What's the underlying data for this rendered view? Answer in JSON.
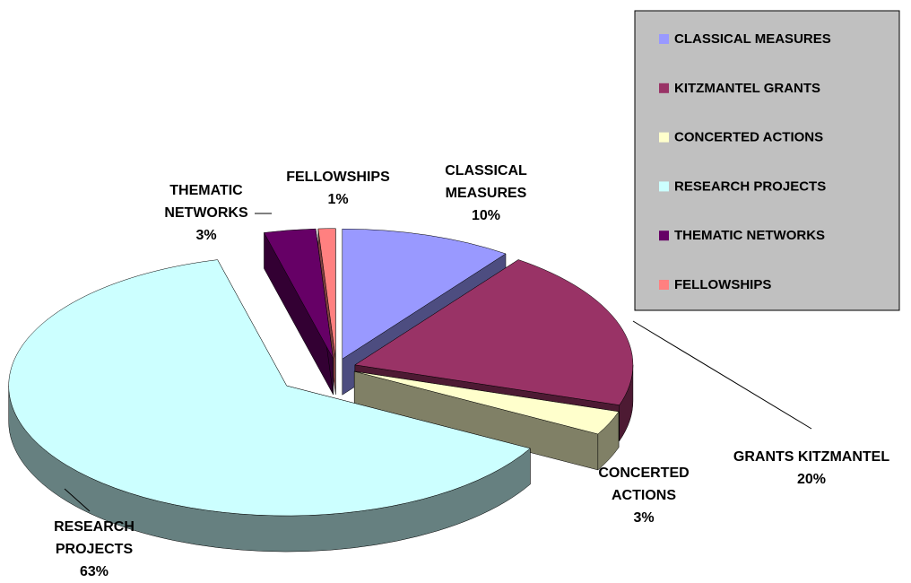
{
  "chart_data": {
    "type": "pie3d",
    "categories": [
      "CLASSICAL MEASURES",
      "KITZMANTEL GRANTS",
      "CONCERTED ACTIONS",
      "RESEARCH PROJECTS",
      "THEMATIC NETWORKS",
      "FELLOWSHIPS"
    ],
    "labels": [
      "CLASSICAL MEASURES",
      "GRANTS KITZMANTEL",
      "CONCERTED ACTIONS",
      "RESEARCH PROJECTS",
      "THEMATIC NETWORKS",
      "FELLOWSHIPS"
    ],
    "values": [
      10,
      20,
      3,
      63,
      3,
      1
    ],
    "value_labels": [
      "10%",
      "20%",
      "3%",
      "63%",
      "3%",
      "1%"
    ],
    "colors": [
      "#9999ff",
      "#993366",
      "#ffffcc",
      "#ccffff",
      "#660066",
      "#ff8080"
    ],
    "legend": "top-right"
  }
}
